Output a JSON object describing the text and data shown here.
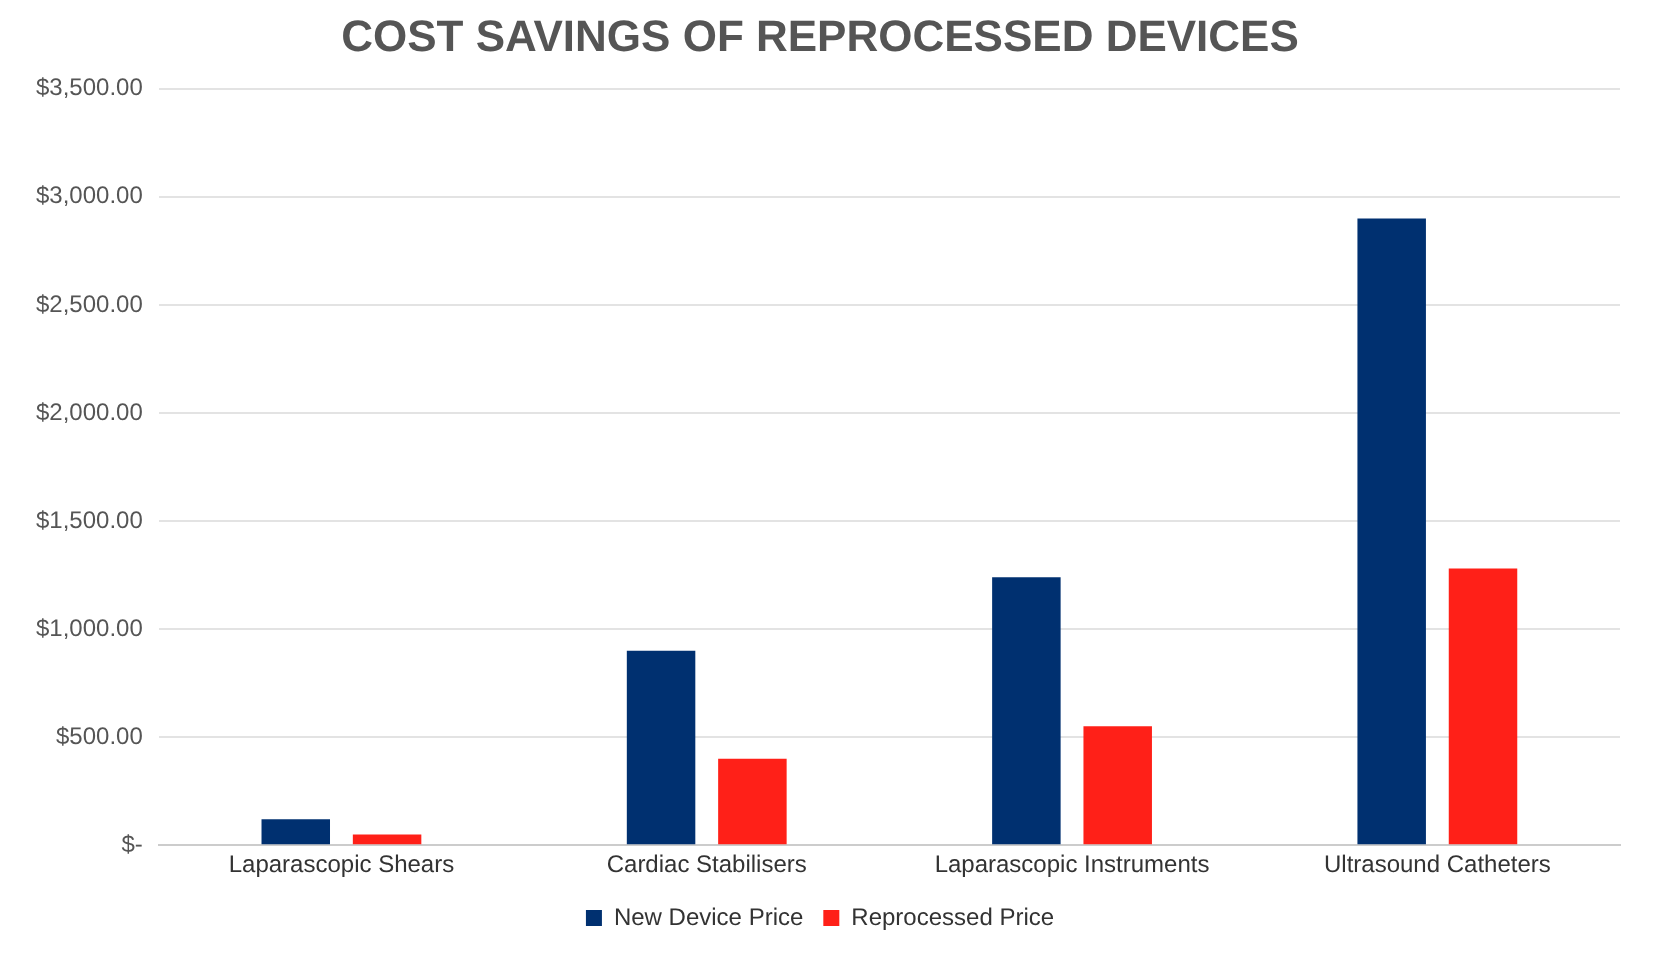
{
  "chart_data": {
    "type": "bar",
    "title": "COST SAVINGS OF REPROCESSED DEVICES",
    "categories": [
      "Laparascopic Shears",
      "Cardiac Stabilisers",
      "Laparascopic Instruments",
      "Ultrasound Catheters"
    ],
    "series": [
      {
        "name": "New Device Price",
        "color": "#003070",
        "values": [
          120,
          900,
          1240,
          2900
        ]
      },
      {
        "name": "Reprocessed Price",
        "color": "#ff2018",
        "values": [
          50,
          400,
          550,
          1280
        ]
      }
    ],
    "ylim": [
      0,
      3500
    ],
    "yticks": [
      {
        "value": 0,
        "label": "$-"
      },
      {
        "value": 500,
        "label": "$500.00"
      },
      {
        "value": 1000,
        "label": "$1,000.00"
      },
      {
        "value": 1500,
        "label": "$1,500.00"
      },
      {
        "value": 2000,
        "label": "$2,000.00"
      },
      {
        "value": 2500,
        "label": "$2,500.00"
      },
      {
        "value": 3000,
        "label": "$3,000.00"
      },
      {
        "value": 3500,
        "label": "$3,500.00"
      }
    ],
    "grid": "y",
    "legend": "bottom"
  }
}
